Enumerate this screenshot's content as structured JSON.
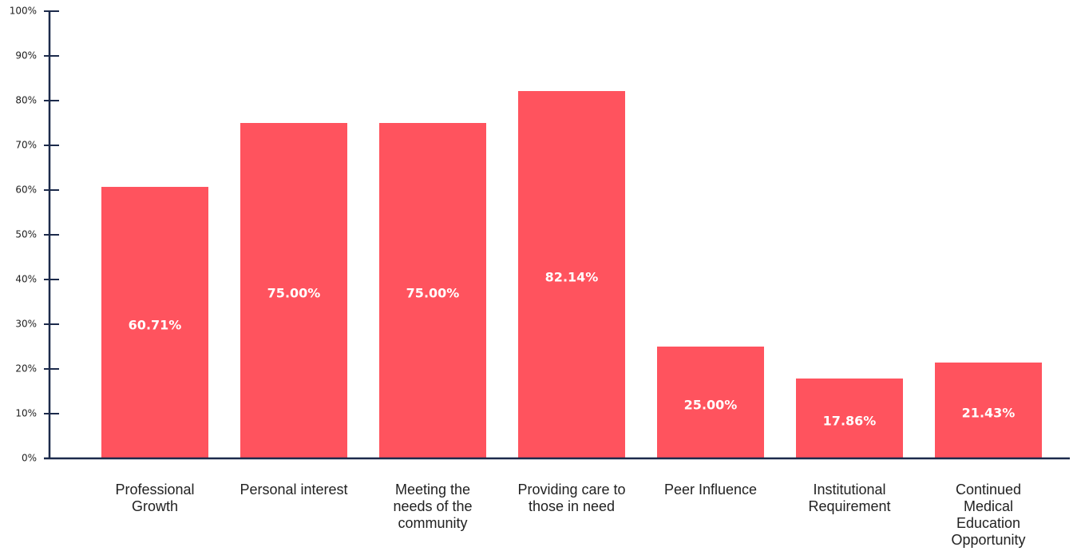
{
  "chart_data": {
    "type": "bar",
    "categories": [
      "Professional Growth",
      "Personal interest",
      "Meeting the needs of the community",
      "Providing care to those in need",
      "Peer Influence",
      "Institutional Requirement",
      "Continued Medical Education Opportunity"
    ],
    "values": [
      60.71,
      75.0,
      75.0,
      82.14,
      25.0,
      17.86,
      21.43
    ],
    "value_labels": [
      "60.71%",
      "75.00%",
      "75.00%",
      "82.14%",
      "25.00%",
      "17.86%",
      "21.43%"
    ],
    "color": "#ff535e",
    "ylim": [
      0,
      100
    ],
    "yticks": [
      {
        "value": 0,
        "label": "0%"
      },
      {
        "value": 10,
        "label": "10%"
      },
      {
        "value": 20,
        "label": "20%"
      },
      {
        "value": 30,
        "label": "30%"
      },
      {
        "value": 40,
        "label": "40%"
      },
      {
        "value": 50,
        "label": "50%"
      },
      {
        "value": 60,
        "label": "60%"
      },
      {
        "value": 70,
        "label": "70%"
      },
      {
        "value": 80,
        "label": "80%"
      },
      {
        "value": 90,
        "label": "90%"
      },
      {
        "value": 100,
        "label": "100%"
      }
    ],
    "grid": false
  }
}
